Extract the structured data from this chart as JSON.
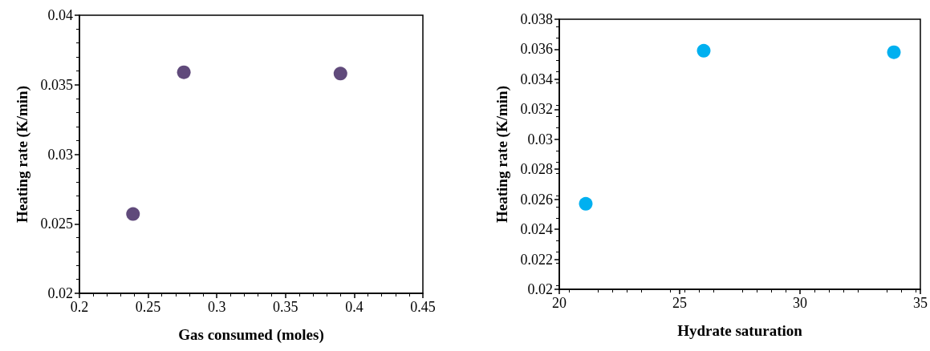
{
  "chart_data": [
    {
      "type": "scatter",
      "xlabel": "Gas consumed (moles)",
      "ylabel": "Heating rate (K/min)",
      "x": [
        0.239,
        0.276,
        0.39
      ],
      "values": [
        0.0257,
        0.0359,
        0.0358
      ],
      "color": "#604a7b",
      "xlim": [
        0.2,
        0.45
      ],
      "xticks": [
        0.2,
        0.25,
        0.3,
        0.35,
        0.4,
        0.45
      ],
      "ylim": [
        0.02,
        0.04
      ],
      "yticks": [
        0.02,
        0.025,
        0.03,
        0.035,
        0.04
      ],
      "grid": false,
      "marker": "circle"
    },
    {
      "type": "scatter",
      "xlabel": "Hydrate saturation",
      "ylabel": "Heating rate (K/min)",
      "x": [
        21.1,
        26,
        33.9
      ],
      "values": [
        0.0257,
        0.0359,
        0.0358
      ],
      "color": "#00b0f0",
      "xlim": [
        20,
        35
      ],
      "xticks": [
        20,
        25,
        30,
        35
      ],
      "ylim": [
        0.02,
        0.038
      ],
      "yticks": [
        0.02,
        0.022,
        0.024,
        0.026,
        0.028,
        0.03,
        0.032,
        0.034,
        0.036,
        0.038
      ],
      "grid": false,
      "marker": "circle"
    }
  ]
}
